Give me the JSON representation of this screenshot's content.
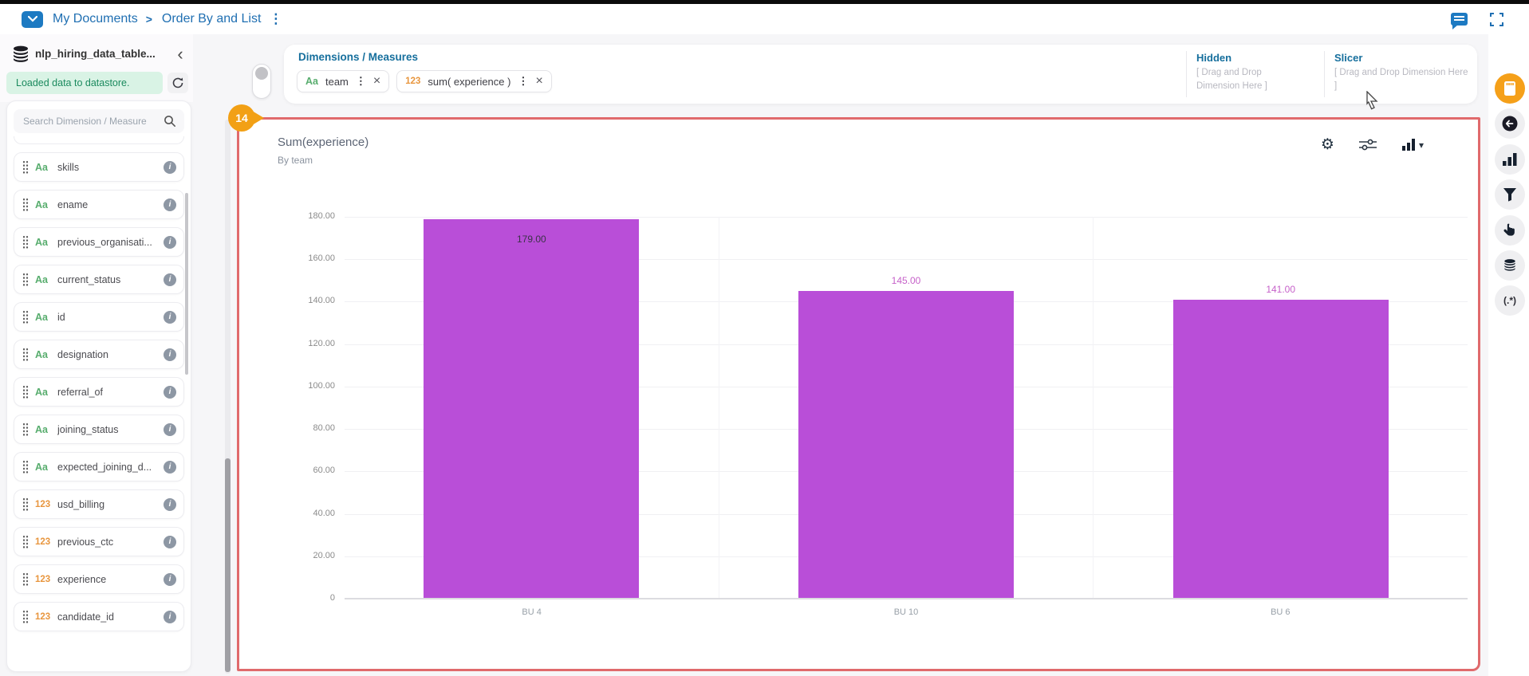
{
  "topbar": {
    "root": "My Documents",
    "separator": ">",
    "page": "Order By and List",
    "menu_dots": "⋮"
  },
  "sidebar": {
    "table_name": "nlp_hiring_data_table...",
    "collapse_glyph": "‹",
    "status": "Loaded data to datastore.",
    "search_placeholder": "Search Dimension / Measure",
    "info_glyph": "i",
    "fields": [
      {
        "kind": "text",
        "type_label": "Aa",
        "label": "skills"
      },
      {
        "kind": "text",
        "type_label": "Aa",
        "label": "ename"
      },
      {
        "kind": "text",
        "type_label": "Aa",
        "label": "previous_organisati..."
      },
      {
        "kind": "text",
        "type_label": "Aa",
        "label": "current_status"
      },
      {
        "kind": "text",
        "type_label": "Aa",
        "label": "id"
      },
      {
        "kind": "text",
        "type_label": "Aa",
        "label": "designation"
      },
      {
        "kind": "text",
        "type_label": "Aa",
        "label": "referral_of"
      },
      {
        "kind": "text",
        "type_label": "Aa",
        "label": "joining_status"
      },
      {
        "kind": "text",
        "type_label": "Aa",
        "label": "expected_joining_d..."
      },
      {
        "kind": "number",
        "type_label": "123",
        "label": "usd_billing"
      },
      {
        "kind": "number",
        "type_label": "123",
        "label": "previous_ctc"
      },
      {
        "kind": "number",
        "type_label": "123",
        "label": "experience"
      },
      {
        "kind": "number",
        "type_label": "123",
        "label": "candidate_id"
      }
    ]
  },
  "builder": {
    "title": "Dimensions / Measures",
    "chips": [
      {
        "kind": "text",
        "type_label": "Aa",
        "label": "team"
      },
      {
        "kind": "number",
        "type_label": "123",
        "label": "sum( experience )"
      }
    ],
    "chip_dots": "⋮",
    "chip_close": "×",
    "hidden_title": "Hidden",
    "hidden_hint": "[ Drag and Drop Dimension Here ]",
    "slicer_title": "Slicer",
    "slicer_hint": "[ Drag and Drop Dimension Here ]"
  },
  "annotation_badge": "14",
  "chart_card": {
    "title": "Sum(experience)",
    "subtitle": "By team",
    "type_caret": "▾",
    "gear_glyph": "⚙"
  },
  "chart_data": {
    "type": "bar",
    "title": "Sum(experience)",
    "subtitle": "By team",
    "categories": [
      "BU 4",
      "BU 10",
      "BU 6"
    ],
    "values": [
      179,
      145,
      141
    ],
    "value_labels": [
      "179.00",
      "145.00",
      "141.00"
    ],
    "label_placement": [
      "inside",
      "above",
      "above"
    ],
    "ylim": [
      0,
      180
    ],
    "yticks": [
      {
        "value": 180,
        "label": "180.00"
      },
      {
        "value": 160,
        "label": "160.00"
      },
      {
        "value": 140,
        "label": "140.00"
      },
      {
        "value": 120,
        "label": "120.00"
      },
      {
        "value": 100,
        "label": "100.00"
      },
      {
        "value": 80,
        "label": "80.00"
      },
      {
        "value": 60,
        "label": "60.00"
      },
      {
        "value": 40,
        "label": "40.00"
      },
      {
        "value": 20,
        "label": "20.00"
      },
      {
        "value": 0,
        "label": "0"
      }
    ],
    "grid": true,
    "legend": false,
    "bar_color": "#b94ed8",
    "inside_label_color": "#3a3347",
    "outside_label_color": "#c661c9"
  },
  "right_rail": {
    "regex_label": "(.*)",
    "icons": [
      "data-card",
      "back",
      "bar-chart",
      "filter",
      "tap",
      "database",
      "regex"
    ]
  },
  "status_back_arrow": "←"
}
